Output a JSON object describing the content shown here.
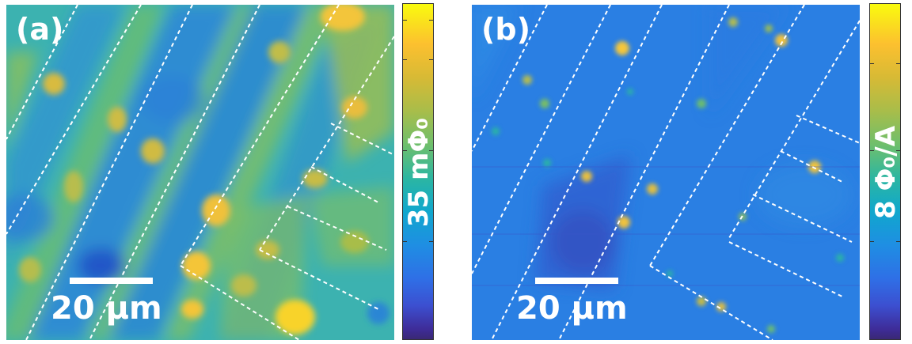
{
  "panels": [
    {
      "label": "(a)",
      "scale_bar": "20 μm",
      "colorbar_label": "35 mΦ₀"
    },
    {
      "label": "(b)",
      "scale_bar": "20 μm",
      "colorbar_label": "8 Φ₀/A"
    }
  ],
  "colors": {
    "colormap": [
      "#3a2874",
      "#3e2c98",
      "#2f6fe6",
      "#10a7cd",
      "#2cb6a2",
      "#6ebf6c",
      "#a8bd4a",
      "#fcc02f",
      "#f9fb0e"
    ],
    "annotation_lines": "#ffffff",
    "panel_a_background": "#3cb2b0",
    "panel_b_background": "#2a7fe3"
  }
}
